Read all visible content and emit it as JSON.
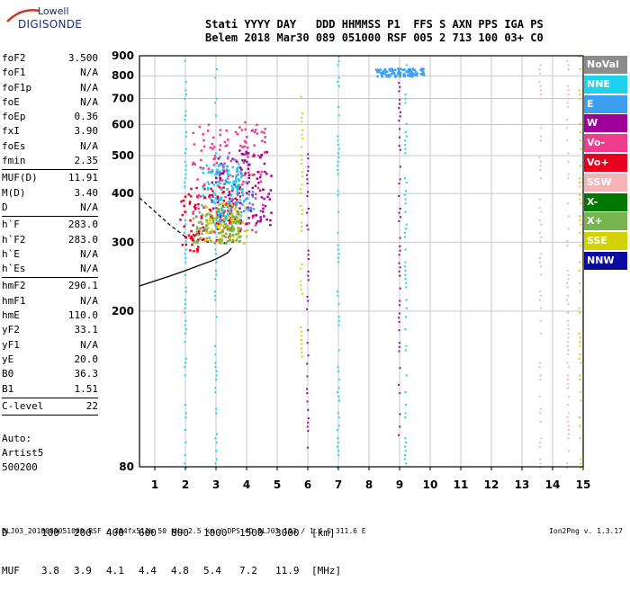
{
  "logo": {
    "line1": "Lowell",
    "line2": "DIGISONDE"
  },
  "header": {
    "row1": "Stati YYYY DAY   DDD HHMMSS P1  FFS S AXN PPS IGA PS",
    "row2": "Belem 2018 Mar30 089 051000 RSF 005 2 713 100 03+ C0"
  },
  "params": [
    {
      "name": "foF2",
      "value": "3.500"
    },
    {
      "name": "foF1",
      "value": "N/A"
    },
    {
      "name": "foF1p",
      "value": "N/A"
    },
    {
      "name": "foE",
      "value": "N/A"
    },
    {
      "name": "foEp",
      "value": "0.36"
    },
    {
      "name": "fxI",
      "value": "3.90"
    },
    {
      "name": "foEs",
      "value": "N/A"
    },
    {
      "name": "fmin",
      "value": "2.35"
    },
    {
      "sep": true
    },
    {
      "name": "MUF(D)",
      "value": "11.91"
    },
    {
      "name": "M(D)",
      "value": "3.40"
    },
    {
      "name": "D",
      "value": "N/A"
    },
    {
      "sep": true
    },
    {
      "name": "h`F",
      "value": "283.0"
    },
    {
      "name": "h`F2",
      "value": "283.0"
    },
    {
      "name": "h`E",
      "value": "N/A"
    },
    {
      "name": "h`Es",
      "value": "N/A"
    },
    {
      "sep": true
    },
    {
      "name": "hmF2",
      "value": "290.1"
    },
    {
      "name": "hmF1",
      "value": "N/A"
    },
    {
      "name": "hmE",
      "value": "110.0"
    },
    {
      "name": "yF2",
      "value": "33.1"
    },
    {
      "name": "yF1",
      "value": "N/A"
    },
    {
      "name": "yE",
      "value": "20.0"
    },
    {
      "name": "B0",
      "value": "36.3"
    },
    {
      "name": "B1",
      "value": "1.51"
    },
    {
      "sep": true
    },
    {
      "name": "C-level",
      "value": "22"
    },
    {
      "sep": true
    }
  ],
  "auto": {
    "line1": "Auto:",
    "line2": "Artist5",
    "line3": "500200"
  },
  "muf_table": {
    "d_label": "D",
    "d_values": [
      "100",
      "200",
      "400",
      "600",
      "800",
      "1000",
      "1500",
      "3000"
    ],
    "d_unit": "[km]",
    "muf_label": "MUF",
    "muf_values": [
      "3.8",
      "3.9",
      "4.1",
      "4.4",
      "4.8",
      "5.4",
      "7.2",
      "11.9"
    ],
    "muf_unit": "[MHz]"
  },
  "footer": {
    "left": "BLJ03_2018089051000.RSF / 284fx512h 50 kHz 2.5 km / DPS-4D BLJ03 103 / 1.4 S 311.6 E",
    "right": "Ion2Png v. 1.3.17"
  },
  "legend": [
    {
      "label": "NoVal",
      "color": "#8c8c8c"
    },
    {
      "label": "NNE",
      "color": "#1ed2ee"
    },
    {
      "label": "E",
      "color": "#3c9ff2"
    },
    {
      "label": "W",
      "color": "#a0009a"
    },
    {
      "label": "Vo-",
      "color": "#f03c8c"
    },
    {
      "label": "Vo+",
      "color": "#e8001e"
    },
    {
      "label": "SSW",
      "color": "#f2b4b4"
    },
    {
      "label": "X-",
      "color": "#007800"
    },
    {
      "label": "X+",
      "color": "#78b450"
    },
    {
      "label": "SSE",
      "color": "#d2d200"
    },
    {
      "label": "NNW",
      "color": "#0a0aa0"
    }
  ],
  "chart_data": {
    "type": "scatter",
    "title": "",
    "xlabel": "",
    "ylabel": "",
    "xlim": [
      0.5,
      15
    ],
    "ylim": [
      80,
      900
    ],
    "y_scale": "log",
    "x_ticks": [
      1,
      2,
      3,
      4,
      5,
      6,
      7,
      8,
      9,
      10,
      11,
      12,
      13,
      14,
      15
    ],
    "y_ticks": [
      80,
      200,
      300,
      400,
      500,
      600,
      700,
      800,
      900
    ],
    "grid": true,
    "legend_position": "right",
    "profile_curve": {
      "x": [
        0.5,
        1.0,
        1.5,
        2.0,
        2.4,
        2.8,
        3.0,
        3.2,
        3.4,
        3.5
      ],
      "y": [
        232,
        239,
        246,
        254,
        261,
        268,
        272,
        277,
        283,
        290
      ]
    },
    "dashed_extension": {
      "x": [
        0.5,
        1.0,
        1.5,
        2.0
      ],
      "y": [
        390,
        360,
        332,
        310
      ]
    },
    "echo_clusters": [
      {
        "series": "Vo+",
        "x": [
          1.8,
          3.8
        ],
        "y": [
          285,
          420
        ]
      },
      {
        "series": "Vo-",
        "x": [
          2.2,
          4.6
        ],
        "y": [
          320,
          620
        ]
      },
      {
        "series": "W",
        "x": [
          2.8,
          4.8
        ],
        "y": [
          330,
          520
        ]
      },
      {
        "series": "E",
        "x": [
          3.0,
          4.2
        ],
        "y": [
          340,
          500
        ]
      },
      {
        "series": "NNE",
        "x": [
          2.5,
          3.8
        ],
        "y": [
          340,
          480
        ]
      },
      {
        "series": "SSE",
        "x": [
          2.6,
          4.0
        ],
        "y": [
          300,
          380
        ]
      },
      {
        "series": "X+",
        "x": [
          2.2,
          3.8
        ],
        "y": [
          300,
          360
        ]
      },
      {
        "series": "E",
        "x": [
          8.2,
          9.8
        ],
        "y": [
          800,
          840
        ]
      }
    ],
    "vertical_streaks": [
      {
        "series": "NNE",
        "x": 2.0,
        "y": [
          80,
          900
        ]
      },
      {
        "series": "NNE",
        "x": 3.0,
        "y": [
          80,
          900
        ]
      },
      {
        "series": "W",
        "x": 6.0,
        "y": [
          90,
          600
        ]
      },
      {
        "series": "NNE",
        "x": 7.0,
        "y": [
          80,
          900
        ]
      },
      {
        "series": "W",
        "x": 9.0,
        "y": [
          90,
          900
        ]
      },
      {
        "series": "NNE",
        "x": 9.2,
        "y": [
          80,
          900
        ]
      },
      {
        "series": "SSE",
        "x": 5.8,
        "y": [
          150,
          720
        ]
      },
      {
        "series": "SSW",
        "x": 13.6,
        "y": [
          80,
          900
        ]
      },
      {
        "series": "SSW",
        "x": 14.5,
        "y": [
          80,
          900
        ]
      },
      {
        "series": "SSE",
        "x": 14.9,
        "y": [
          80,
          900
        ]
      }
    ]
  }
}
